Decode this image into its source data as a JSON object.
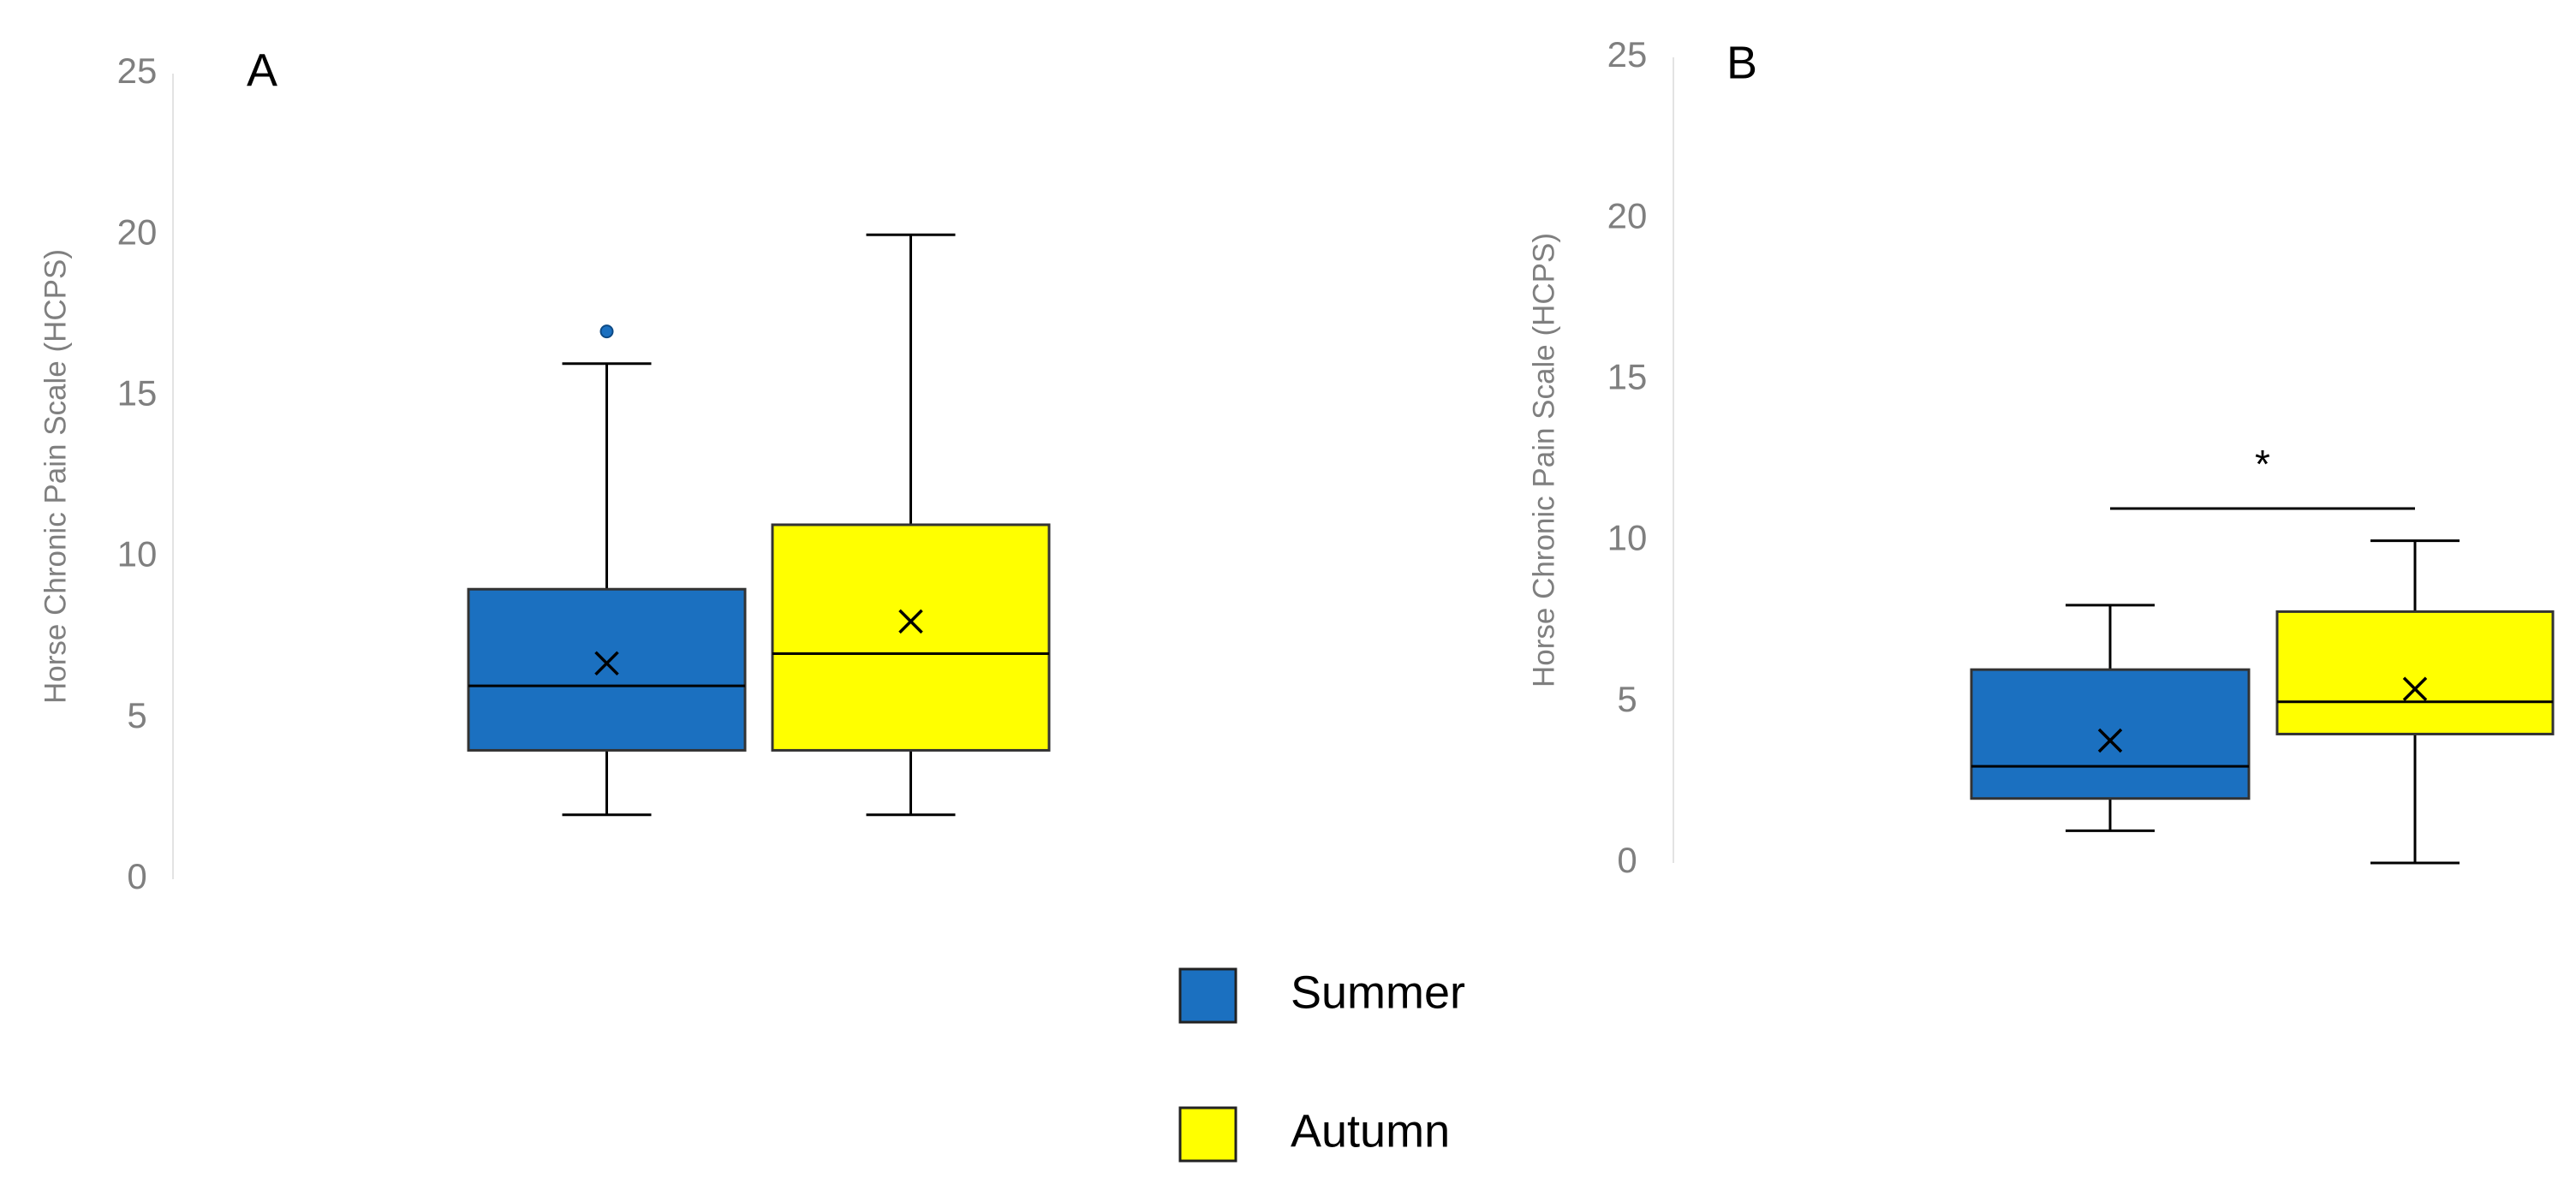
{
  "chart_data": [
    {
      "type": "box",
      "panel_label": "A",
      "ylabel": "Horse Chronic Pain Scale (HCPS)",
      "ylim": [
        0,
        25
      ],
      "yticks": [
        0,
        5,
        10,
        15,
        20,
        25
      ],
      "series": [
        {
          "name": "Summer",
          "color": "#1b70c0",
          "min": 2,
          "q1": 4,
          "median": 6,
          "q3": 9,
          "max": 16,
          "mean": 6.7,
          "outliers": [
            17
          ]
        },
        {
          "name": "Autumn",
          "color": "#ffff00",
          "min": 2,
          "q1": 4,
          "median": 7,
          "q3": 11,
          "max": 20,
          "mean": 8
        }
      ]
    },
    {
      "type": "box",
      "panel_label": "B",
      "ylabel": "Horse Chronic Pain Scale (HCPS)",
      "ylim": [
        0,
        25
      ],
      "yticks": [
        0,
        5,
        10,
        15,
        20,
        25
      ],
      "series": [
        {
          "color": "#1b70c0",
          "min": 1,
          "q1": 2,
          "median": 3,
          "q3": 6,
          "max": 8,
          "mean": 3.8
        },
        {
          "color": "#ffff00",
          "min": 0,
          "q1": 4,
          "median": 5,
          "q3": 7.8,
          "max": 10,
          "mean": 5.4
        }
      ],
      "annotation": {
        "text": "*",
        "y": 11
      }
    }
  ]
}
